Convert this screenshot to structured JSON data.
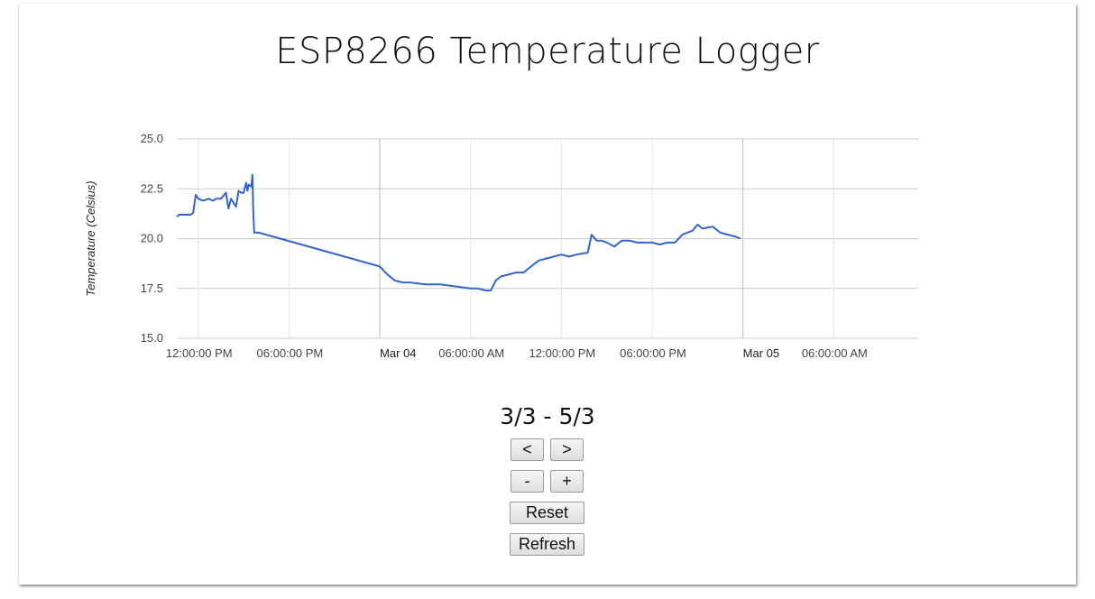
{
  "page": {
    "title": "ESP8266 Temperature Logger"
  },
  "chart_data": {
    "type": "line",
    "ylabel": "Temperature (Celsius)",
    "ylim": [
      15.0,
      25.0
    ],
    "y_ticks": [
      "25.0",
      "22.5",
      "20.0",
      "17.5",
      "15.0"
    ],
    "x_ticks": [
      {
        "t": "2024-03-03T12:00",
        "label": "12:00:00 PM",
        "major": false
      },
      {
        "t": "2024-03-03T18:00",
        "label": "06:00:00 PM",
        "major": false
      },
      {
        "t": "2024-03-04T00:00",
        "label": "Mar 04",
        "major": true
      },
      {
        "t": "2024-03-04T06:00",
        "label": "06:00:00 AM",
        "major": false
      },
      {
        "t": "2024-03-04T12:00",
        "label": "12:00:00 PM",
        "major": false
      },
      {
        "t": "2024-03-04T18:00",
        "label": "06:00:00 PM",
        "major": false
      },
      {
        "t": "2024-03-05T00:00",
        "label": "Mar 05",
        "major": true
      },
      {
        "t": "2024-03-05T06:00",
        "label": "06:00:00 AM",
        "major": false
      }
    ],
    "xlim": [
      "2024-03-03T10:35",
      "2024-03-05T11:35"
    ],
    "grid": true,
    "color": "#3366cc",
    "series": [
      {
        "x": [
          "2024-03-03T10:35",
          "2024-03-03T10:45",
          "2024-03-03T11:10",
          "2024-03-03T11:30",
          "2024-03-03T11:40",
          "2024-03-03T11:50",
          "2024-03-03T12:00",
          "2024-03-03T12:20",
          "2024-03-03T12:40",
          "2024-03-03T13:00",
          "2024-03-03T13:10",
          "2024-03-03T13:30",
          "2024-03-03T13:50",
          "2024-03-03T14:00",
          "2024-03-03T14:10",
          "2024-03-03T14:20",
          "2024-03-03T14:30",
          "2024-03-03T14:40",
          "2024-03-03T14:50",
          "2024-03-03T15:00",
          "2024-03-03T15:10",
          "2024-03-03T15:15",
          "2024-03-03T15:20",
          "2024-03-03T15:30",
          "2024-03-03T15:35",
          "2024-03-03T15:38",
          "2024-03-03T15:42",
          "2024-03-03T15:48",
          "2024-03-03T15:50",
          "2024-03-03T16:00",
          "2024-03-04T00:00",
          "2024-03-04T00:30",
          "2024-03-04T01:00",
          "2024-03-04T01:30",
          "2024-03-04T02:00",
          "2024-03-04T03:00",
          "2024-03-04T04:00",
          "2024-03-04T05:00",
          "2024-03-04T06:00",
          "2024-03-04T06:30",
          "2024-03-04T07:00",
          "2024-03-04T07:20",
          "2024-03-04T07:40",
          "2024-03-04T08:00",
          "2024-03-04T09:00",
          "2024-03-04T09:30",
          "2024-03-04T10:00",
          "2024-03-04T10:30",
          "2024-03-04T11:00",
          "2024-03-04T11:30",
          "2024-03-04T12:00",
          "2024-03-04T12:30",
          "2024-03-04T13:00",
          "2024-03-04T13:45",
          "2024-03-04T14:00",
          "2024-03-04T14:20",
          "2024-03-04T14:40",
          "2024-03-04T15:00",
          "2024-03-04T15:30",
          "2024-03-04T16:00",
          "2024-03-04T16:30",
          "2024-03-04T17:00",
          "2024-03-04T17:30",
          "2024-03-04T18:00",
          "2024-03-04T18:30",
          "2024-03-04T19:00",
          "2024-03-04T19:30",
          "2024-03-04T20:00",
          "2024-03-04T20:40",
          "2024-03-04T21:00",
          "2024-03-04T21:20",
          "2024-03-04T22:00",
          "2024-03-04T22:30",
          "2024-03-04T23:00",
          "2024-03-04T23:30",
          "2024-03-04T23:50"
        ],
        "values": [
          21.1,
          21.2,
          21.2,
          21.2,
          21.3,
          22.2,
          22.0,
          21.9,
          22.0,
          21.9,
          22.0,
          22.0,
          22.3,
          21.5,
          22.0,
          21.8,
          21.6,
          22.4,
          22.3,
          22.3,
          22.8,
          22.4,
          22.7,
          22.6,
          23.2,
          21.5,
          20.3,
          20.3,
          20.3,
          20.3,
          18.6,
          18.2,
          17.9,
          17.8,
          17.8,
          17.7,
          17.7,
          17.6,
          17.5,
          17.5,
          17.4,
          17.4,
          17.9,
          18.1,
          18.3,
          18.3,
          18.6,
          18.9,
          19.0,
          19.1,
          19.2,
          19.1,
          19.2,
          19.3,
          20.2,
          19.9,
          19.9,
          19.8,
          19.6,
          19.9,
          19.9,
          19.8,
          19.8,
          19.8,
          19.7,
          19.8,
          19.8,
          20.2,
          20.4,
          20.7,
          20.5,
          20.6,
          20.3,
          20.2,
          20.1,
          20.0
        ]
      }
    ]
  },
  "navigation": {
    "range_label": "3/3 - 5/3",
    "prev_label": "<",
    "next_label": ">",
    "zoom_out_label": "-",
    "zoom_in_label": "+",
    "reset_label": "Reset",
    "refresh_label": "Refresh"
  }
}
